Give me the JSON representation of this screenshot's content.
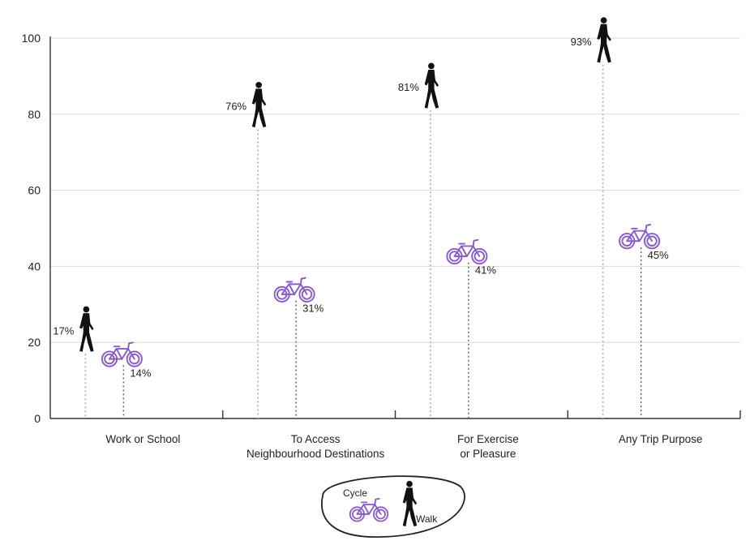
{
  "chart_data": {
    "type": "scatter",
    "categories": [
      [
        "Work or School"
      ],
      [
        "To Access",
        "Neighbourhood Destinations"
      ],
      [
        "For Exercise",
        "or Pleasure"
      ],
      [
        "Any Trip Purpose"
      ]
    ],
    "series": [
      {
        "name": "Walk",
        "values": [
          17,
          76,
          81,
          93
        ],
        "labels": [
          "17%",
          "76%",
          "81%",
          "93%"
        ],
        "icon": "walker-icon"
      },
      {
        "name": "Cycle",
        "values": [
          14,
          31,
          41,
          45
        ],
        "labels": [
          "14%",
          "31%",
          "41%",
          "45%"
        ],
        "icon": "bicycle-icon"
      }
    ],
    "ylim": [
      0,
      100
    ],
    "yticks": [
      "0",
      "20",
      "40",
      "60",
      "80",
      "100"
    ],
    "grid": true,
    "legend": {
      "placement": "bottom-center",
      "cycle_label": "Cycle",
      "walk_label": "Walk"
    },
    "colors": {
      "walk": "#111111",
      "cycle": "#8a5cc4",
      "grid": "#d8d8d8",
      "axis": "#333333"
    }
  }
}
